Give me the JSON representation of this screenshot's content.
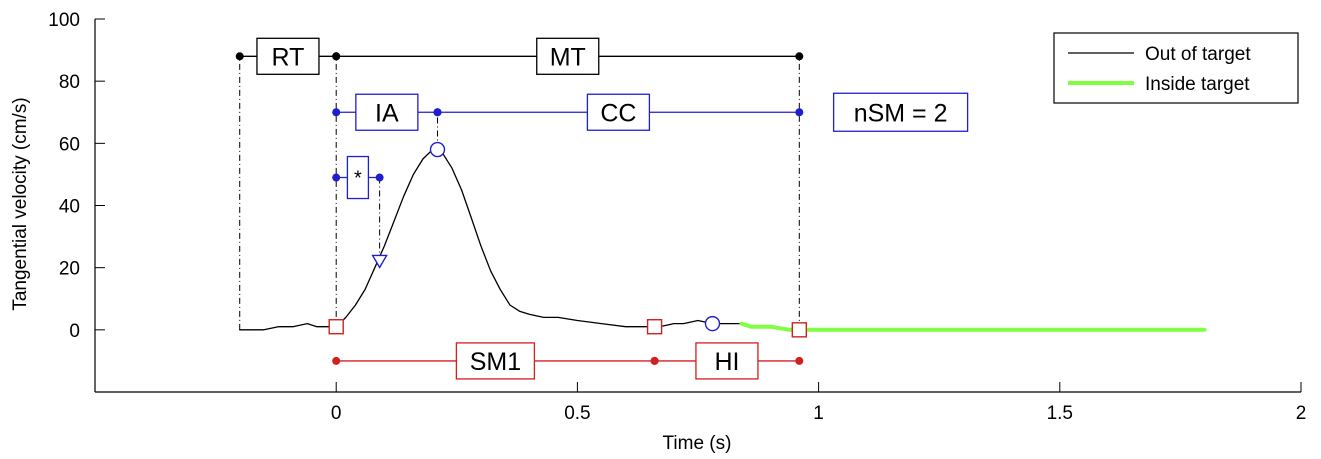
{
  "chart_data": {
    "type": "line",
    "title": "",
    "xlabel": "Time (s)",
    "ylabel": "Tangential velocity (cm/s)",
    "xlim": [
      -0.5,
      2
    ],
    "ylim": [
      -20,
      100
    ],
    "xticks": [
      0,
      0.5,
      1,
      1.5,
      2
    ],
    "xtick_labels": [
      "0",
      "0.5",
      "1",
      "1.5",
      "2"
    ],
    "yticks": [
      0,
      20,
      40,
      60,
      80,
      100
    ],
    "ytick_labels": [
      "0",
      "20",
      "40",
      "60",
      "80",
      "100"
    ],
    "grid": false,
    "legend_position": "top-right",
    "series": [
      {
        "name": "Out of target",
        "color": "#000000",
        "x": [
          -0.2,
          -0.15,
          -0.12,
          -0.09,
          -0.06,
          -0.04,
          -0.02,
          0,
          0.02,
          0.04,
          0.06,
          0.08,
          0.1,
          0.12,
          0.14,
          0.16,
          0.18,
          0.2,
          0.21,
          0.22,
          0.24,
          0.26,
          0.28,
          0.3,
          0.32,
          0.34,
          0.36,
          0.38,
          0.4,
          0.43,
          0.46,
          0.5,
          0.55,
          0.6,
          0.65,
          0.67,
          0.7,
          0.72,
          0.75,
          0.78,
          0.81,
          0.84
        ],
        "y": [
          0,
          0,
          1,
          1,
          2,
          1,
          1,
          1,
          4,
          8,
          13,
          20,
          27,
          35,
          43,
          50,
          55,
          58,
          58,
          57,
          52,
          45,
          36,
          27,
          19,
          13,
          8,
          6,
          5,
          4,
          4,
          3,
          2,
          1,
          1,
          1,
          2,
          2,
          3,
          2,
          2,
          2
        ]
      },
      {
        "name": "Inside target",
        "color": "#7fff3f",
        "x": [
          0.84,
          0.86,
          0.9,
          0.94,
          0.96,
          1.0,
          1.2,
          1.4,
          1.6,
          1.8
        ],
        "y": [
          2,
          1,
          1,
          0,
          0,
          0,
          0,
          0,
          0,
          0
        ]
      }
    ],
    "phases": [
      {
        "label": "RT",
        "y": 88,
        "start": -0.2,
        "end": 0,
        "color": "#000000"
      },
      {
        "label": "MT",
        "y": 88,
        "start": 0,
        "end": 0.96,
        "color": "#000000"
      },
      {
        "label": "IA",
        "y": 70,
        "start": 0,
        "end": 0.21,
        "color": "#1f1fcf"
      },
      {
        "label": "CC",
        "y": 70,
        "start": 0.21,
        "end": 0.96,
        "color": "#1f1fcf"
      },
      {
        "label": "*",
        "y": 49,
        "start": 0,
        "end": 0.09,
        "color": "#1f1fcf"
      },
      {
        "label": "SM1",
        "y": -10,
        "start": 0,
        "end": 0.66,
        "color": "#d02020"
      },
      {
        "label": "HI",
        "y": -10,
        "start": 0.66,
        "end": 0.96,
        "color": "#d02020"
      }
    ],
    "markers": [
      {
        "shape": "square",
        "x": 0,
        "y": 1,
        "color": "#d02020"
      },
      {
        "shape": "square",
        "x": 0.66,
        "y": 1,
        "color": "#d02020"
      },
      {
        "shape": "square",
        "x": 0.96,
        "y": 0,
        "color": "#d02020"
      },
      {
        "shape": "circle",
        "x": 0.21,
        "y": 58,
        "color": "#1f1fcf"
      },
      {
        "shape": "circle",
        "x": 0.78,
        "y": 2,
        "color": "#1f1fcf"
      },
      {
        "shape": "triangle",
        "x": 0.09,
        "y": 22,
        "color": "#1f1fcf"
      }
    ],
    "guides": [
      {
        "x": -0.2,
        "from": 0,
        "to": 88
      },
      {
        "x": 0,
        "from": 0,
        "to": 88
      },
      {
        "x": 0.96,
        "from": 0,
        "to": 88
      },
      {
        "x": 0.21,
        "from": 58,
        "to": 70
      },
      {
        "x": 0.09,
        "from": 22,
        "to": 49
      }
    ],
    "annotation": {
      "label": "nSM = 2",
      "x": 1.17,
      "y": 70,
      "color": "#1f1fcf"
    }
  }
}
